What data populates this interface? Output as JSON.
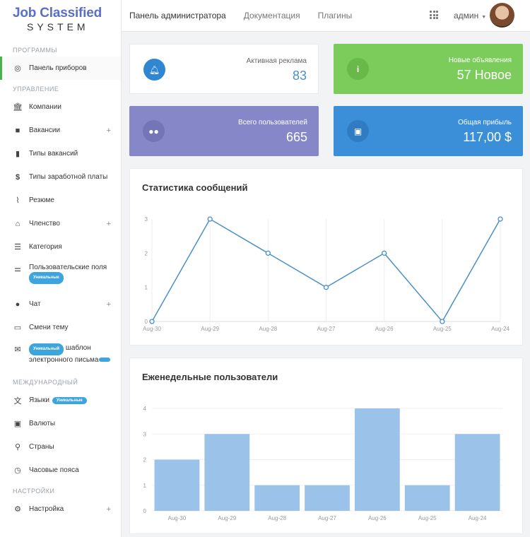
{
  "logo": {
    "line1": "Job Classified",
    "line2": "SYSTEM"
  },
  "sidebar": {
    "sections": {
      "programs": "ПРОГРАММЫ",
      "management": "УПРАВЛЕНИЕ",
      "international": "МЕЖДУНАРОДНЫЙ",
      "settings": "НАСТРОЙКИ"
    },
    "items": [
      {
        "label": "Панель приборов"
      },
      {
        "label": "Компании"
      },
      {
        "label": "Вакансии"
      },
      {
        "label": "Типы вакансий"
      },
      {
        "label": "Типы заработной платы"
      },
      {
        "label": "Резюме"
      },
      {
        "label": "Членство"
      },
      {
        "label": "Категория"
      },
      {
        "label": "Пользовательские поля",
        "badge": "Уникальные"
      },
      {
        "label": "Чат"
      },
      {
        "label": "Смени тему"
      },
      {
        "badge": "Уникальный",
        "label_a": "шаблон",
        "label_b": "электронного письма"
      },
      {
        "label": "Языки",
        "badge": "Уникальные"
      },
      {
        "label": "Валюты"
      },
      {
        "label": "Страны"
      },
      {
        "label": "Часовые пояса"
      },
      {
        "label": "Настройка"
      }
    ]
  },
  "topbar": {
    "nav": [
      "Панель администратора",
      "Документация",
      "Плагины"
    ],
    "user": "админ"
  },
  "stats": [
    {
      "label": "Активная реклама",
      "value": "83"
    },
    {
      "label": "Новые объявления",
      "value": "57 Новое"
    },
    {
      "label": "Всего пользователей",
      "value": "665"
    },
    {
      "label": "Общая прибыль",
      "value": "117,00 $"
    }
  ],
  "charts": {
    "messages_title": "Статистика сообщений",
    "users_title": "Еженедельные пользователи"
  },
  "colors": {
    "line": "#4a90c8",
    "bar": "#9bc3ea",
    "green": "#7ccc5c",
    "purple": "#8587c8",
    "blue": "#3a8fd8"
  },
  "chart_data": [
    {
      "type": "line",
      "title": "Статистика сообщений",
      "categories": [
        "Aug-30",
        "Aug-29",
        "Aug-28",
        "Aug-27",
        "Aug-26",
        "Aug-25",
        "Aug-24"
      ],
      "values": [
        0,
        3,
        2,
        1,
        2,
        0,
        3
      ],
      "ylim": [
        0,
        3
      ],
      "yticks": [
        0,
        1,
        2,
        3
      ],
      "grid": true
    },
    {
      "type": "bar",
      "title": "Еженедельные пользователи",
      "categories": [
        "Aug-30",
        "Aug-29",
        "Aug-28",
        "Aug-27",
        "Aug-26",
        "Aug-25",
        "Aug-24"
      ],
      "values": [
        2,
        3,
        1,
        1,
        4,
        1,
        3
      ],
      "ylim": [
        0,
        4
      ],
      "yticks": [
        0,
        1,
        2,
        3,
        4
      ],
      "grid": true
    }
  ]
}
